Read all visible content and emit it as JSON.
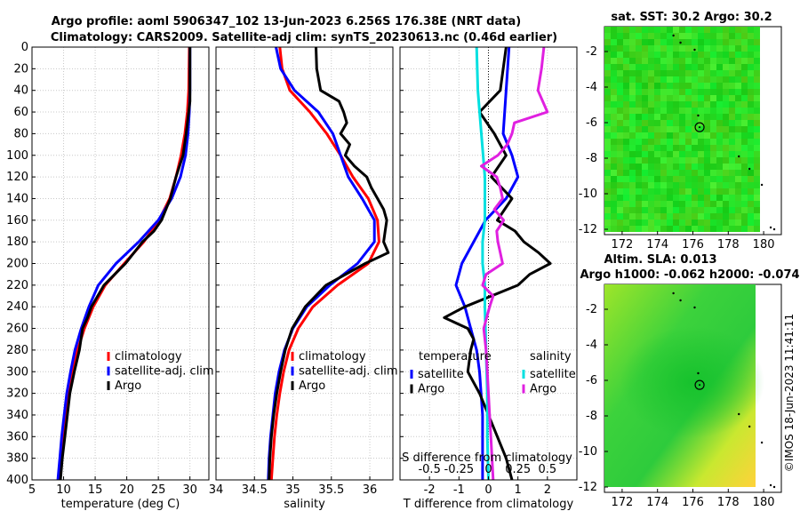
{
  "header": {
    "title_line1": "Argo profile: aoml 5906347_102 13-Jun-2023 6.256S 176.38E (NRT data)",
    "title_line2": "Climatology: CARS2009. Satellite-adj clim: synTS_20230613.nc (0.46d earlier)"
  },
  "watermark": "©IMOS 18-Jun-2023 11:41:11",
  "colors": {
    "clim": "#ff0000",
    "sat": "#0000ff",
    "argo": "#000000",
    "sal_sat": "#00e0e0",
    "sal_argo": "#e020e0",
    "grid": "#c8c8c8",
    "map_land_green": "#1fd21f"
  },
  "chart_data": [
    {
      "type": "line",
      "name": "temperature-profile",
      "xlabel": "temperature (deg C)",
      "ylabel": "depth",
      "xlim": [
        5,
        33
      ],
      "ylim": [
        0,
        400
      ],
      "y_reversed": true,
      "x_ticks": [
        5,
        10,
        15,
        20,
        25,
        30
      ],
      "y_ticks": [
        0,
        20,
        40,
        60,
        80,
        100,
        120,
        140,
        160,
        180,
        200,
        220,
        240,
        260,
        280,
        300,
        320,
        340,
        360,
        380,
        400
      ],
      "legend": [
        "climatology",
        "satellite-adj. clim",
        "Argo"
      ],
      "legend_position": "lower-right",
      "series": [
        {
          "name": "climatology",
          "depth": [
            0,
            40,
            60,
            80,
            100,
            120,
            140,
            160,
            180,
            200,
            220,
            240,
            260,
            280,
            300,
            320,
            340,
            360,
            380,
            400
          ],
          "values": [
            29.9,
            29.8,
            29.6,
            29.2,
            28.6,
            27.8,
            26.8,
            25.1,
            22.7,
            19.6,
            16.6,
            14.7,
            13.3,
            12.2,
            11.4,
            10.8,
            10.3,
            9.9,
            9.6,
            9.4
          ]
        },
        {
          "name": "satellite-adj. clim",
          "depth": [
            0,
            40,
            60,
            80,
            100,
            120,
            140,
            160,
            180,
            200,
            220,
            240,
            260,
            280,
            300,
            320,
            340,
            360,
            380,
            400
          ],
          "values": [
            30.0,
            30.0,
            29.9,
            29.7,
            29.3,
            28.5,
            27.1,
            25.0,
            21.9,
            18.3,
            15.5,
            14.0,
            12.8,
            11.8,
            11.1,
            10.5,
            10.1,
            9.7,
            9.4,
            9.1
          ]
        },
        {
          "name": "Argo",
          "depth": [
            0,
            20,
            40,
            50,
            60,
            80,
            100,
            120,
            140,
            160,
            170,
            180,
            200,
            220,
            240,
            250,
            260,
            280,
            300,
            320,
            340,
            360,
            380,
            400
          ],
          "values": [
            30.0,
            30.0,
            30.0,
            30.0,
            29.8,
            29.4,
            28.9,
            27.8,
            26.9,
            25.5,
            24.3,
            22.5,
            19.8,
            16.4,
            14.4,
            13.8,
            13.0,
            12.5,
            11.7,
            11.0,
            10.6,
            10.2,
            9.8,
            9.5
          ]
        }
      ]
    },
    {
      "type": "line",
      "name": "salinity-profile",
      "xlabel": "salinity",
      "xlim": [
        34.0,
        36.3
      ],
      "ylim": [
        0,
        400
      ],
      "y_reversed": true,
      "x_ticks": [
        34,
        34.5,
        35,
        35.5,
        36
      ],
      "legend": [
        "climatology",
        "satellite-adj. clim",
        "Argo"
      ],
      "legend_position": "lower-right",
      "series": [
        {
          "name": "climatology",
          "depth": [
            0,
            20,
            40,
            60,
            80,
            100,
            120,
            140,
            160,
            180,
            200,
            220,
            240,
            260,
            280,
            300,
            320,
            340,
            360,
            380,
            400
          ],
          "values": [
            34.83,
            34.86,
            34.96,
            35.22,
            35.44,
            35.62,
            35.78,
            35.98,
            36.1,
            36.12,
            35.98,
            35.58,
            35.26,
            35.07,
            34.95,
            34.88,
            34.83,
            34.79,
            34.76,
            34.74,
            34.72
          ]
        },
        {
          "name": "satellite-adj. clim",
          "depth": [
            0,
            20,
            40,
            60,
            80,
            100,
            120,
            140,
            160,
            180,
            200,
            220,
            240,
            260,
            280,
            300,
            320,
            340,
            360,
            380,
            400
          ],
          "values": [
            34.78,
            34.84,
            35.02,
            35.33,
            35.52,
            35.62,
            35.72,
            35.9,
            36.06,
            36.06,
            35.84,
            35.48,
            35.18,
            35.0,
            34.89,
            34.82,
            34.77,
            34.74,
            34.71,
            34.69,
            34.68
          ]
        },
        {
          "name": "Argo",
          "depth": [
            0,
            20,
            40,
            50,
            60,
            70,
            80,
            90,
            100,
            110,
            120,
            130,
            140,
            150,
            160,
            170,
            180,
            190,
            200,
            220,
            240,
            260,
            280,
            300,
            320,
            340,
            360,
            380,
            400
          ],
          "values": [
            35.3,
            35.31,
            35.36,
            35.6,
            35.66,
            35.7,
            35.62,
            35.74,
            35.68,
            35.8,
            35.96,
            36.02,
            36.1,
            36.18,
            36.22,
            36.2,
            36.18,
            36.24,
            35.94,
            35.43,
            35.16,
            34.99,
            34.9,
            34.84,
            34.79,
            34.75,
            34.72,
            34.7,
            34.69
          ]
        }
      ]
    },
    {
      "type": "line",
      "name": "difference-profile",
      "xlabel": "T difference from climatology",
      "x2label": "S difference from climatology",
      "xlim": [
        -3,
        3
      ],
      "x2lim": [
        -0.75,
        0.75
      ],
      "ylim": [
        0,
        400
      ],
      "y_reversed": true,
      "x_ticks": [
        -2,
        -1,
        0,
        1,
        2
      ],
      "x2_ticks": [
        -0.5,
        -0.25,
        0,
        0.25,
        0.5
      ],
      "legend_groups": [
        {
          "title": "temperature",
          "items": [
            "satellite",
            "Argo"
          ]
        },
        {
          "title": "salinity",
          "items": [
            "satellite",
            "Argo"
          ]
        }
      ],
      "series": [
        {
          "name": "temperature satellite",
          "depth": [
            0,
            40,
            80,
            100,
            120,
            140,
            160,
            180,
            200,
            220,
            240,
            260,
            280,
            300,
            340,
            400
          ],
          "values": [
            0.7,
            0.6,
            0.5,
            0.8,
            1.0,
            0.6,
            -0.1,
            -0.5,
            -0.9,
            -1.1,
            -0.8,
            -0.6,
            -0.4,
            -0.3,
            -0.2,
            -0.2
          ]
        },
        {
          "name": "temperature Argo",
          "depth": [
            0,
            40,
            60,
            80,
            100,
            120,
            140,
            160,
            170,
            180,
            190,
            200,
            210,
            220,
            240,
            250,
            260,
            270,
            280,
            300,
            320,
            340,
            360,
            380,
            400
          ],
          "values": [
            0.6,
            0.4,
            -0.3,
            0.2,
            0.6,
            0.1,
            0.8,
            0.3,
            0.9,
            1.2,
            1.7,
            2.1,
            1.4,
            1.0,
            -0.8,
            -1.5,
            -0.7,
            -0.5,
            -0.6,
            -0.7,
            -0.3,
            0.0,
            0.3,
            0.6,
            0.8
          ]
        },
        {
          "name": "salinity satellite",
          "depth": [
            0,
            40,
            80,
            120,
            160,
            180,
            200,
            220,
            240,
            280,
            320,
            360,
            400
          ],
          "values": [
            -0.1,
            -0.09,
            -0.06,
            -0.03,
            -0.03,
            -0.05,
            -0.05,
            -0.03,
            -0.03,
            -0.02,
            -0.01,
            -0.01,
            0.0
          ]
        },
        {
          "name": "salinity Argo",
          "depth": [
            0,
            20,
            40,
            60,
            70,
            80,
            90,
            100,
            110,
            120,
            130,
            140,
            150,
            160,
            170,
            180,
            190,
            200,
            210,
            220,
            230,
            240,
            260,
            280,
            300,
            320,
            340,
            360,
            380,
            400
          ],
          "values": [
            0.47,
            0.45,
            0.42,
            0.5,
            0.22,
            0.2,
            0.16,
            0.08,
            -0.06,
            0.07,
            0.1,
            0.12,
            0.05,
            0.13,
            0.07,
            0.08,
            0.1,
            0.12,
            -0.02,
            -0.05,
            0.04,
            0.01,
            -0.04,
            -0.02,
            -0.01,
            0.0,
            0.01,
            0.02,
            0.03,
            0.04
          ]
        }
      ]
    },
    {
      "type": "heatmap",
      "name": "sst-map",
      "title": "sat. SST: 30.2 Argo: 30.2",
      "xlim": [
        171,
        181
      ],
      "ylim": [
        -12.3,
        -0.6
      ],
      "x_ticks": [
        172,
        174,
        176,
        178,
        180
      ],
      "y_ticks": [
        -2,
        -4,
        -6,
        -8,
        -10,
        -12
      ],
      "marker": {
        "lon": 176.38,
        "lat": -6.256
      }
    },
    {
      "type": "heatmap",
      "name": "sla-map",
      "title_line1": "Altim. SLA: 0.013",
      "title_line2": "Argo h1000: -0.062 h2000: -0.074",
      "xlim": [
        171,
        181
      ],
      "ylim": [
        -12.3,
        -0.6
      ],
      "x_ticks": [
        172,
        174,
        176,
        178,
        180
      ],
      "y_ticks": [
        -2,
        -4,
        -6,
        -8,
        -10,
        -12
      ],
      "marker": {
        "lon": 176.38,
        "lat": -6.256
      }
    }
  ]
}
